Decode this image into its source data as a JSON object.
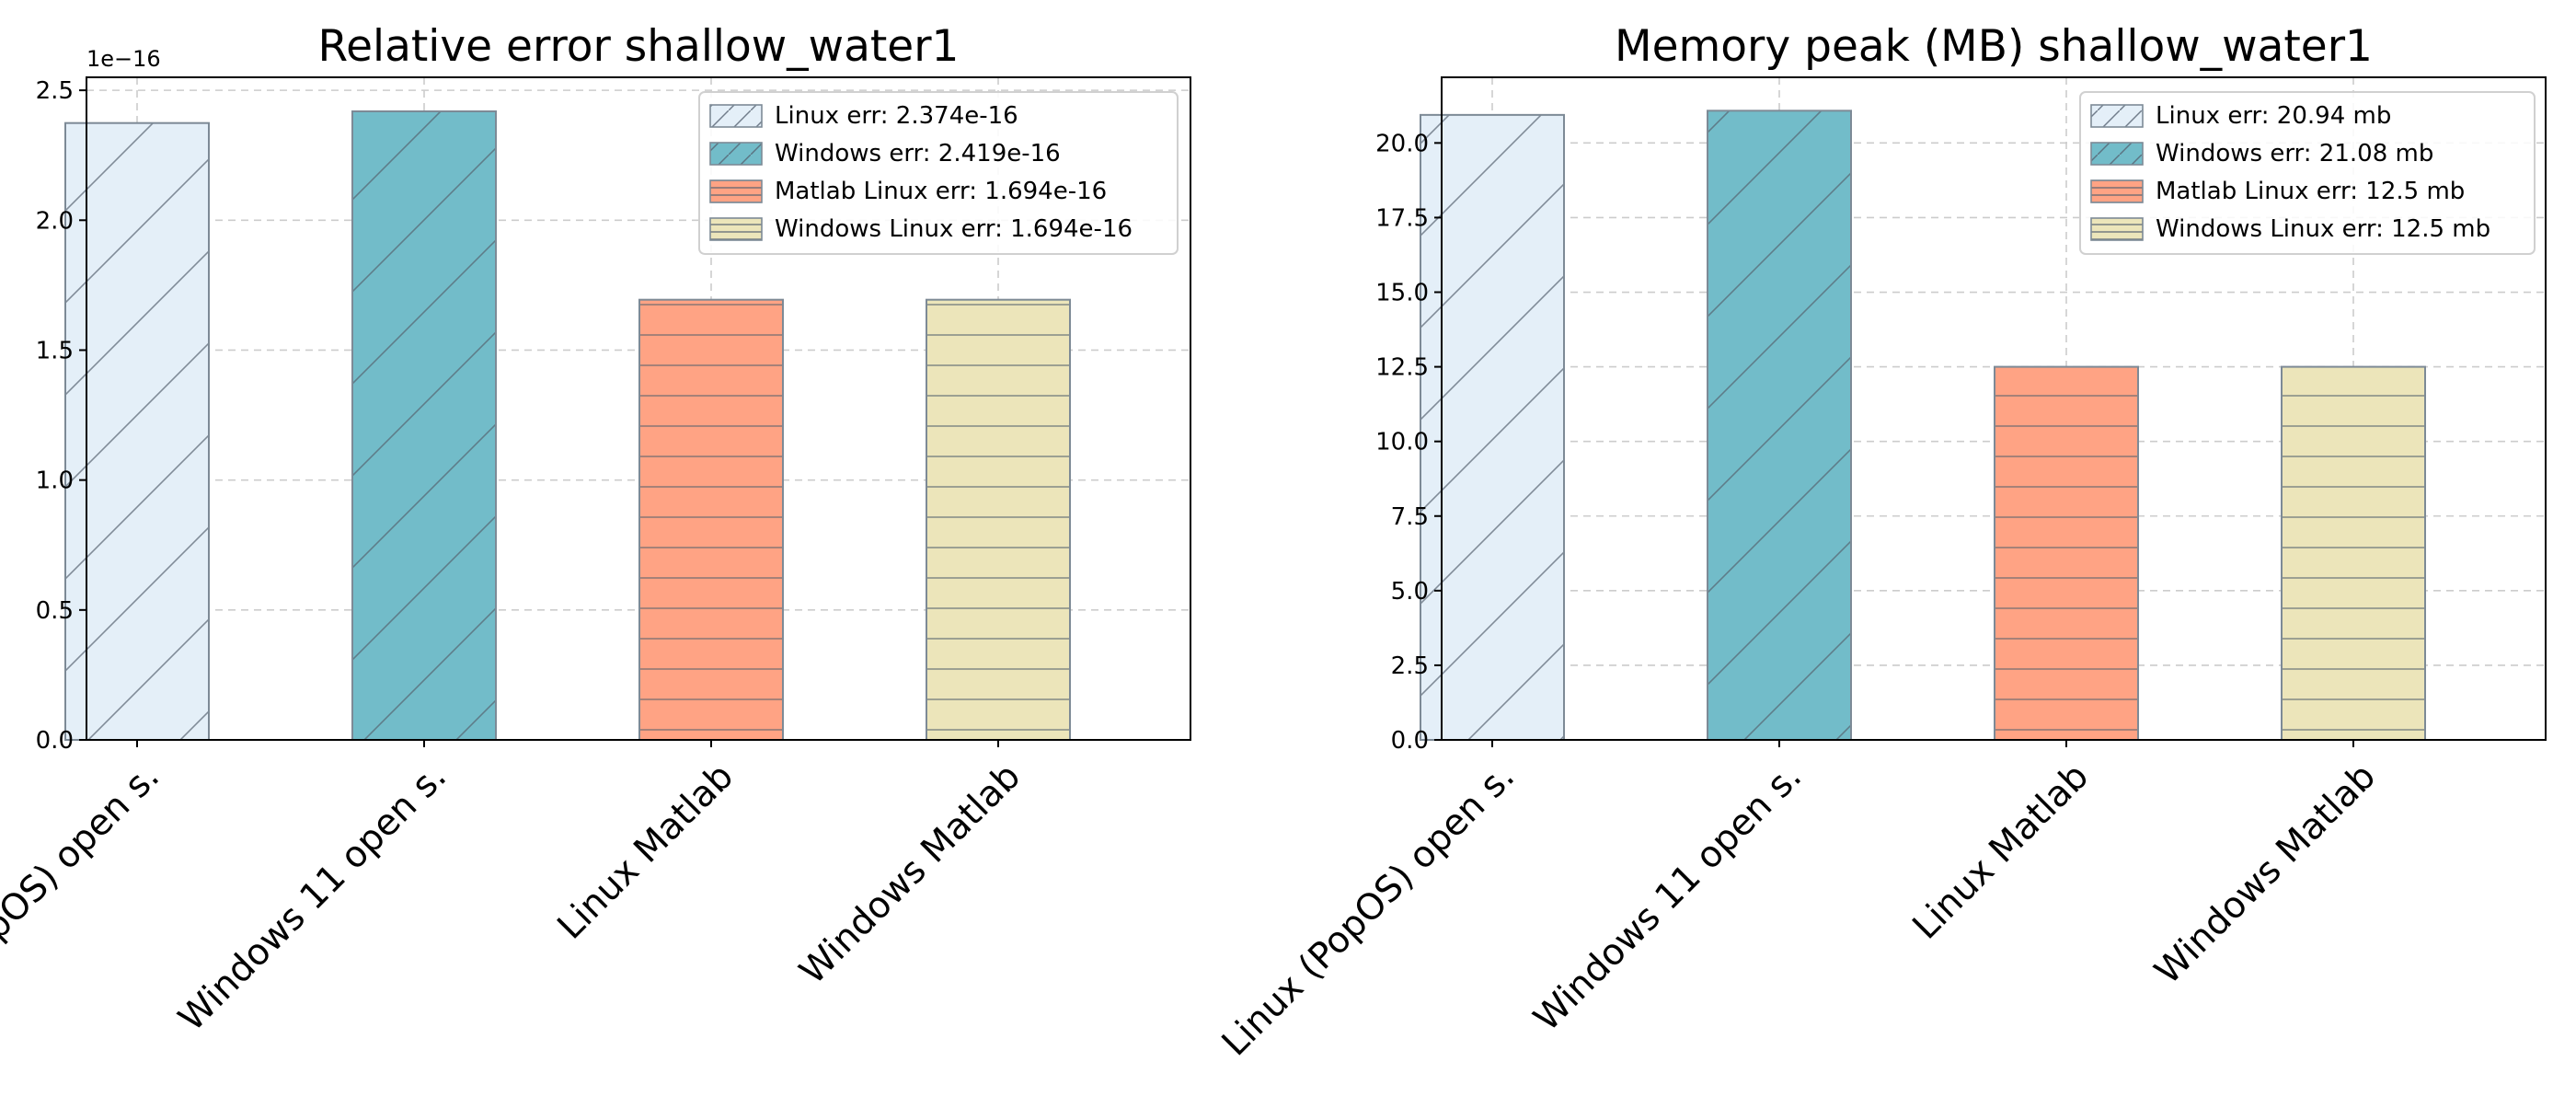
{
  "colors": {
    "linux": "#e4eff8",
    "windows": "#72bcc9",
    "matlab_linux": "#ffa384",
    "matlab_windows": "#ece5ba",
    "hatch": "#556270",
    "edge": "#7d8a96",
    "grid": "#cccccc",
    "axis": "#000000"
  },
  "chart_data": [
    {
      "type": "bar",
      "title": "Relative error shallow_water1",
      "categories": [
        "Linux (PopOS) open s.",
        "Windows 11 open s.",
        "Linux Matlab",
        "Windows Matlab"
      ],
      "values": [
        2.374e-16,
        2.419e-16,
        1.694e-16,
        1.694e-16
      ],
      "ylim": [
        0,
        2.55e-16
      ],
      "yticks": [
        0,
        5e-17,
        1e-16,
        1.5e-16,
        2e-16,
        2.5e-16
      ],
      "ytick_labels": [
        "0.0",
        "0.5",
        "1.0",
        "1.5",
        "2.0",
        "2.5"
      ],
      "offset_label": "1e−16",
      "legend_position": "top-right",
      "legend": [
        "Linux err: 2.374e-16",
        "Windows err: 2.419e-16",
        "Matlab Linux err: 1.694e-16",
        "Windows Linux err: 1.694e-16"
      ],
      "grid": true
    },
    {
      "type": "bar",
      "title": "Memory peak (MB) shallow_water1",
      "categories": [
        "Linux (PopOS) open s.",
        "Windows 11 open s.",
        "Linux Matlab",
        "Windows Matlab"
      ],
      "values": [
        20.94,
        21.08,
        12.5,
        12.5
      ],
      "ylim": [
        0,
        22.2
      ],
      "yticks": [
        0,
        2.5,
        5,
        7.5,
        10,
        12.5,
        15,
        17.5,
        20
      ],
      "ytick_labels": [
        "0.0",
        "2.5",
        "5.0",
        "7.5",
        "10.0",
        "12.5",
        "15.0",
        "17.5",
        "20.0"
      ],
      "offset_label": "",
      "legend_position": "top-right",
      "legend": [
        "Linux err: 20.94 mb",
        "Windows err: 21.08 mb",
        "Matlab Linux err: 12.5 mb",
        "Windows Linux err: 12.5 mb"
      ],
      "grid": true
    }
  ]
}
